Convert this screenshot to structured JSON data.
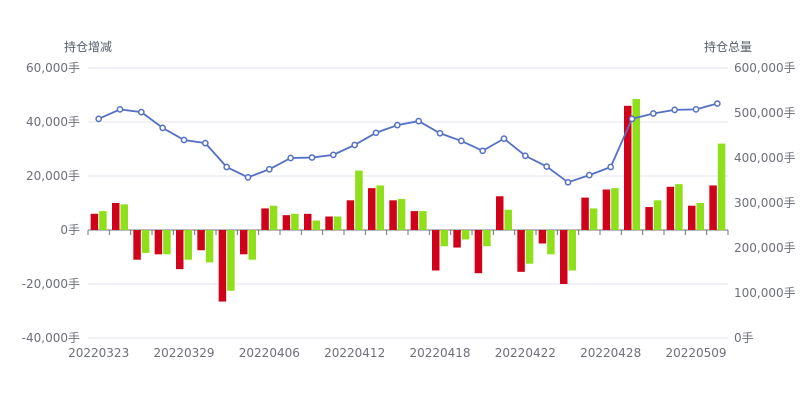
{
  "chart_data": {
    "type": "bar+line",
    "left_axis_title": "持仓增减",
    "right_axis_title": "持仓总量",
    "left_ticks": [
      "60,000手",
      "40,000手",
      "20,000手",
      "0手",
      "-20,000手",
      "-40,000手"
    ],
    "right_ticks": [
      "600,000手",
      "500,000手",
      "400,000手",
      "300,000手",
      "200,000手",
      "100,000手",
      "0手"
    ],
    "x_tick_labels": [
      {
        "index": 0,
        "label": "20220323"
      },
      {
        "index": 4,
        "label": "20220329"
      },
      {
        "index": 8,
        "label": "20220406"
      },
      {
        "index": 12,
        "label": "20220412"
      },
      {
        "index": 16,
        "label": "20220418"
      },
      {
        "index": 20,
        "label": "20220422"
      },
      {
        "index": 24,
        "label": "20220428"
      },
      {
        "index": 28,
        "label": "20220509"
      }
    ],
    "left_ylim": [
      -40000,
      60000
    ],
    "right_ylim": [
      0,
      600000
    ],
    "grid": true,
    "colors": {
      "bar_a": "#d0021b",
      "bar_b": "#8fe01b",
      "line": "#5470c6",
      "grid": "#e0e6f1",
      "axis": "#6e7079"
    },
    "series": [
      {
        "kind": "bar",
        "color": "#d0021b",
        "values": [
          6000,
          10000,
          -11000,
          -9000,
          -14500,
          -7500,
          -26500,
          -9000,
          8000,
          5500,
          6000,
          5000,
          11000,
          15500,
          11000,
          7000,
          -15000,
          -6500,
          -16000,
          12500,
          -15500,
          -5000,
          -20000,
          12000,
          15000,
          46000,
          8500,
          16000,
          9000,
          16500
        ]
      },
      {
        "kind": "bar",
        "color": "#8fe01b",
        "values": [
          7000,
          9500,
          -8500,
          -9000,
          -11000,
          -12000,
          -22500,
          -11000,
          9000,
          6000,
          3500,
          5000,
          22000,
          16500,
          11500,
          7000,
          -6000,
          -3500,
          -6000,
          7500,
          -12500,
          -9000,
          -15000,
          8000,
          15500,
          48500,
          11000,
          17000,
          10000,
          32000
        ]
      },
      {
        "kind": "line",
        "color": "#5470c6",
        "values": [
          487000,
          508000,
          502000,
          467000,
          440000,
          433000,
          380000,
          357000,
          375000,
          400000,
          401000,
          407000,
          429000,
          456000,
          473000,
          482000,
          455000,
          438000,
          416000,
          443000,
          405000,
          381000,
          346000,
          362000,
          380000,
          487000,
          499000,
          507000,
          508000,
          521000
        ]
      }
    ]
  }
}
